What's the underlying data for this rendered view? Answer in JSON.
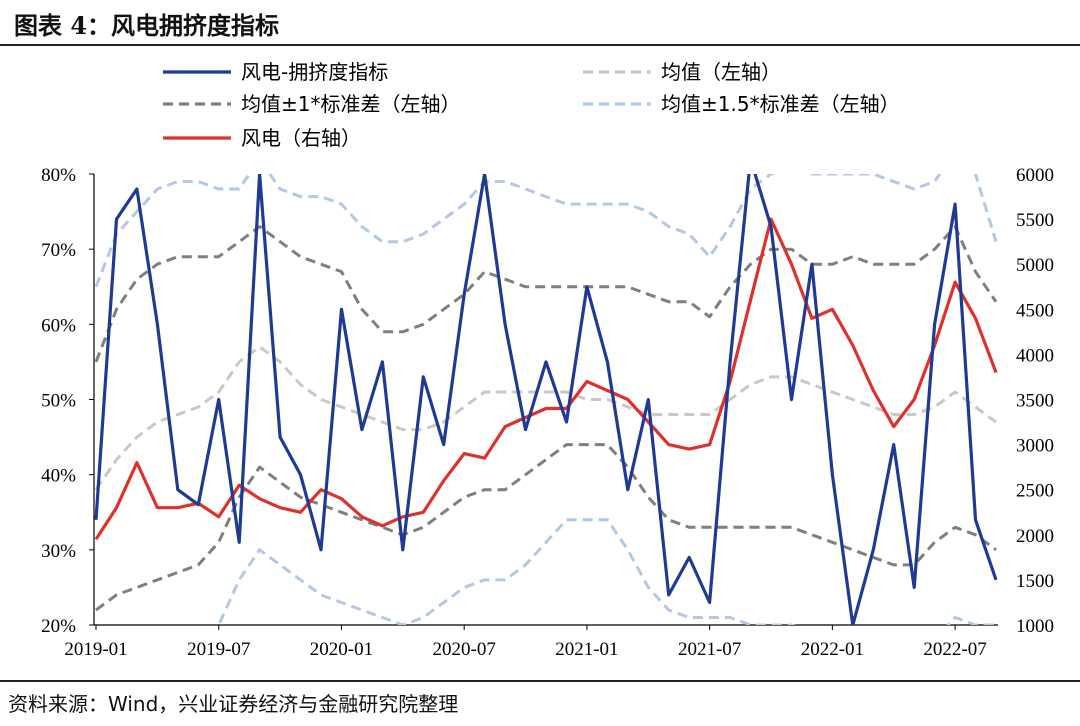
{
  "title": "图表 4：风电拥挤度指标",
  "source": "资料来源：Wind，兴业证券经济与金融研究院整理",
  "chart_data": {
    "type": "line",
    "x": [
      "2019-01",
      "2019-02",
      "2019-03",
      "2019-04",
      "2019-05",
      "2019-06",
      "2019-07",
      "2019-08",
      "2019-09",
      "2019-10",
      "2019-11",
      "2019-12",
      "2020-01",
      "2020-02",
      "2020-03",
      "2020-04",
      "2020-05",
      "2020-06",
      "2020-07",
      "2020-08",
      "2020-09",
      "2020-10",
      "2020-11",
      "2020-12",
      "2021-01",
      "2021-02",
      "2021-03",
      "2021-04",
      "2021-05",
      "2021-06",
      "2021-07",
      "2021-08",
      "2021-09",
      "2021-10",
      "2021-11",
      "2021-12",
      "2022-01",
      "2022-02",
      "2022-03",
      "2022-04",
      "2022-05",
      "2022-06",
      "2022-07",
      "2022-08",
      "2022-09"
    ],
    "x_tick_labels": [
      "2019-01",
      "2019-07",
      "2020-01",
      "2020-07",
      "2021-01",
      "2021-07",
      "2022-01",
      "2022-07"
    ],
    "y_left": {
      "ticks": [
        "20%",
        "30%",
        "40%",
        "50%",
        "60%",
        "70%",
        "80%"
      ],
      "min": 20,
      "max": 80
    },
    "y_right": {
      "ticks": [
        "1000",
        "1500",
        "2000",
        "2500",
        "3000",
        "3500",
        "4000",
        "4500",
        "5000",
        "5500",
        "6000"
      ],
      "min": 1000,
      "max": 6000
    },
    "legend": [
      "风电-拥挤度指标",
      "均值（左轴）",
      "均值±1*标准差（左轴）",
      "均值±1.5*标准差（左轴）",
      "风电（右轴）"
    ],
    "series": [
      {
        "name": "风电-拥挤度指标",
        "axis": "left",
        "color": "#1f3a93",
        "style": "solid",
        "values": [
          34,
          74,
          78,
          60,
          38,
          36,
          50,
          31,
          80,
          45,
          40,
          30,
          62,
          46,
          55,
          30,
          53,
          44,
          64,
          80,
          60,
          46,
          55,
          47,
          65,
          55,
          38,
          50,
          24,
          29,
          23,
          55,
          82,
          73,
          50,
          68,
          40,
          20,
          30,
          44,
          25,
          60,
          76,
          34,
          26
        ]
      },
      {
        "name": "均值（左轴）",
        "axis": "left",
        "color": "#c8c8c8",
        "style": "dash",
        "values": [
          38,
          42,
          45,
          47,
          48,
          49,
          51,
          55,
          57,
          55,
          52,
          50,
          49,
          48,
          47,
          46,
          46,
          47,
          49,
          51,
          51,
          51,
          51,
          51,
          50,
          50,
          49,
          48,
          48,
          48,
          48,
          50,
          52,
          53,
          53,
          52,
          51,
          50,
          49,
          48,
          48,
          49,
          51,
          49,
          47
        ]
      },
      {
        "name": "均值±1*标准差（左轴）",
        "axis": "left",
        "color": "#7f7f7f",
        "style": "dash",
        "values": [
          55,
          62,
          66,
          68,
          69,
          69,
          69,
          71,
          73,
          71,
          69,
          68,
          67,
          62,
          59,
          59,
          60,
          62,
          64,
          67,
          66,
          65,
          65,
          65,
          65,
          65,
          65,
          64,
          63,
          63,
          61,
          65,
          68,
          70,
          70,
          68,
          68,
          69,
          68,
          68,
          68,
          70,
          73,
          67,
          63
        ]
      },
      {
        "name": "均值±1*标准差（左轴）",
        "axis": "left",
        "color": "#7f7f7f",
        "style": "dash",
        "values": [
          22,
          24,
          25,
          26,
          27,
          28,
          31,
          37,
          41,
          39,
          37,
          36,
          35,
          34,
          33,
          32,
          33,
          35,
          37,
          38,
          38,
          40,
          42,
          44,
          44,
          44,
          41,
          37,
          34,
          33,
          33,
          33,
          33,
          33,
          33,
          32,
          31,
          30,
          29,
          28,
          28,
          31,
          33,
          32,
          30
        ]
      },
      {
        "name": "均值±1.5*标准差（左轴）",
        "axis": "left",
        "color": "#b4c7e7",
        "style": "dash",
        "values": [
          65,
          72,
          75,
          78,
          79,
          79,
          78,
          78,
          82,
          78,
          77,
          77,
          76,
          73,
          71,
          71,
          72,
          74,
          76,
          79,
          79,
          78,
          77,
          76,
          76,
          76,
          76,
          75,
          73,
          72,
          69,
          73,
          78,
          80,
          81,
          80,
          80,
          80,
          80,
          79,
          78,
          79,
          83,
          80,
          71
        ]
      },
      {
        "name": "均值±1.5*标准差（左轴）",
        "axis": "left",
        "color": "#b4c7e7",
        "style": "dash",
        "values": [
          12,
          15,
          16,
          17,
          18,
          18,
          20,
          26,
          30,
          28,
          26,
          24,
          23,
          22,
          21,
          20,
          21,
          23,
          25,
          26,
          26,
          28,
          31,
          34,
          34,
          34,
          30,
          25,
          22,
          21,
          21,
          21,
          20,
          20,
          20,
          19,
          18,
          17,
          16,
          15,
          15,
          18,
          21,
          20,
          20
        ]
      },
      {
        "name": "风电（右轴）",
        "axis": "right",
        "color": "#e0302b",
        "style": "solid",
        "values": [
          1950,
          2300,
          2800,
          2300,
          2300,
          2350,
          2200,
          2550,
          2400,
          2300,
          2250,
          2500,
          2400,
          2200,
          2100,
          2200,
          2250,
          2600,
          2900,
          2850,
          3200,
          3300,
          3400,
          3400,
          3700,
          3600,
          3500,
          3250,
          3000,
          2950,
          3000,
          3700,
          4600,
          5500,
          5000,
          4400,
          4500,
          4100,
          3600,
          3200,
          3500,
          4100,
          4800,
          4400,
          3800
        ]
      }
    ]
  }
}
